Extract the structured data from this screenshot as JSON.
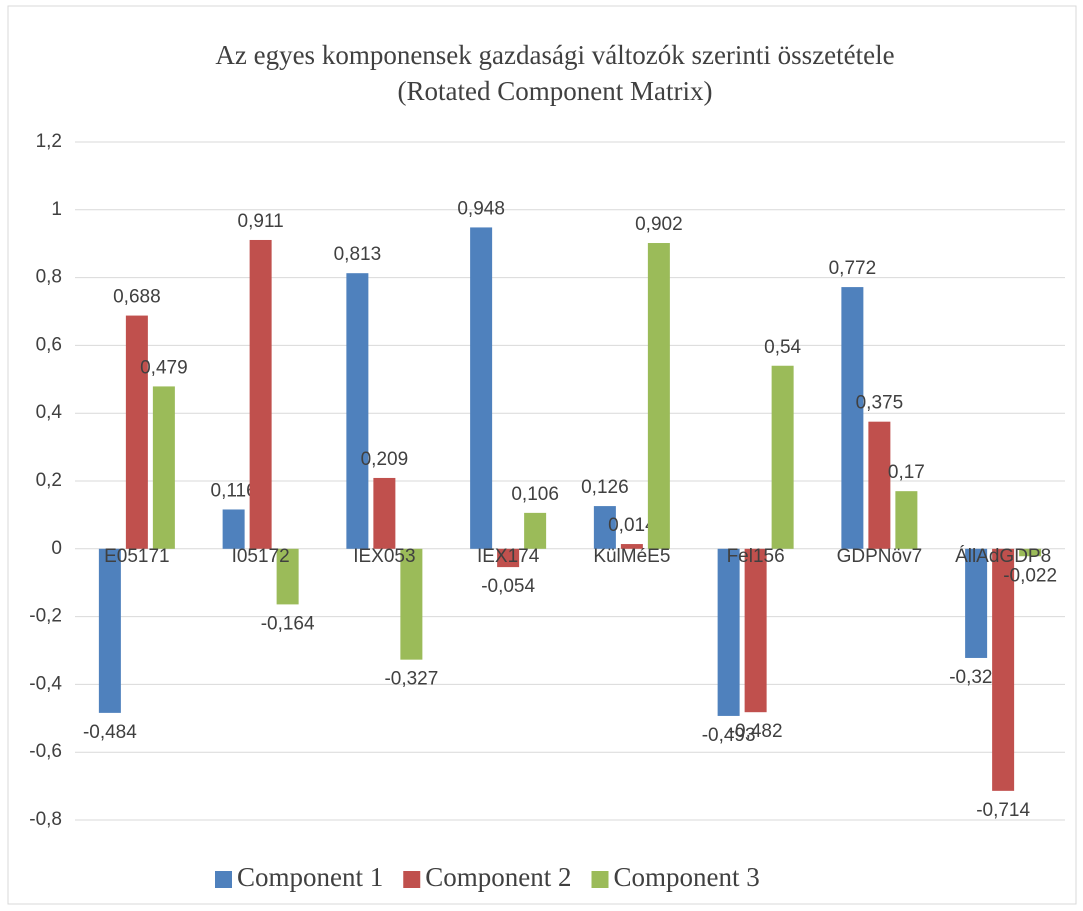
{
  "chart_data": {
    "type": "bar",
    "title": "Az egyes komponensek gazdasági változók szerinti összetétele",
    "subtitle": "(Rotated Component Matrix)",
    "categories": [
      "E05171",
      "I05172",
      "IEX053",
      "IEX174",
      "KülMéE5",
      "Fel156",
      "GDPNöv7",
      "ÁllAdGDP8"
    ],
    "series": [
      {
        "name": "Component 1",
        "color": "#4f81bd",
        "values": [
          -0.484,
          0.116,
          0.813,
          0.948,
          0.126,
          -0.493,
          0.772,
          -0.322
        ],
        "value_labels": [
          "-0,484",
          "0,116",
          "0,813",
          "0,948",
          "0,126",
          "-0,493",
          "0,772",
          "-0,322"
        ]
      },
      {
        "name": "Component 2",
        "color": "#c0504d",
        "values": [
          0.688,
          0.911,
          0.209,
          -0.054,
          0.014,
          -0.482,
          0.375,
          -0.714
        ],
        "value_labels": [
          "0,688",
          "0,911",
          "0,209",
          "-0,054",
          "0,014",
          "-0,482",
          "0,375",
          "-0,714"
        ]
      },
      {
        "name": "Component 3",
        "color": "#9bbb59",
        "values": [
          0.479,
          -0.164,
          -0.327,
          0.106,
          0.902,
          0.54,
          0.17,
          -0.022
        ],
        "value_labels": [
          "0,479",
          "-0,164",
          "-0,327",
          "0,106",
          "0,902",
          "0,54",
          "0,17",
          "-0,022"
        ]
      }
    ],
    "ylim": [
      -0.8,
      1.2
    ],
    "yticks": [
      {
        "value": 1.2,
        "label": "1,2"
      },
      1,
      {
        "value": 0.8,
        "label": "0,8"
      },
      {
        "value": 0.6,
        "label": "0,6"
      },
      {
        "value": 0.4,
        "label": "0,4"
      },
      {
        "value": 0.2,
        "label": "0,2"
      },
      0,
      {
        "value": -0.2,
        "label": "-0,2"
      },
      {
        "value": -0.4,
        "label": "-0,4"
      },
      {
        "value": -0.6,
        "label": "-0,6"
      },
      {
        "value": -0.8,
        "label": "-0,8"
      }
    ],
    "grid": true,
    "legend": "bottom"
  }
}
